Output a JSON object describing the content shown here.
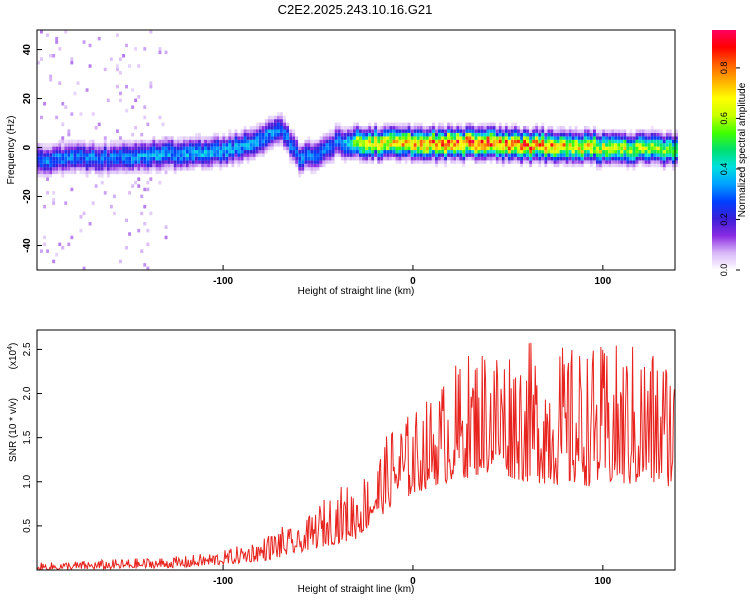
{
  "title": "C2E2.2025.243.10.16.G21",
  "chart_data": [
    {
      "type": "heatmap",
      "xlabel": "Height of straight line (km)",
      "ylabel": "Frequency (Hz)",
      "xlim": [
        -198,
        138
      ],
      "ylim": [
        -50,
        48
      ],
      "xticks": [
        -100,
        0,
        100
      ],
      "yticks": [
        -40,
        -20,
        0,
        20,
        40
      ],
      "colorbar": {
        "label": "Normalized spectral amplitude",
        "range": [
          0.0,
          0.95
        ],
        "ticks": [
          0.0,
          0.2,
          0.4,
          0.6,
          0.8
        ],
        "colors": [
          "#ffffff",
          "#d8b8f8",
          "#8a2be2",
          "#3a1fd8",
          "#0040ff",
          "#00a0ff",
          "#00e0e0",
          "#00e070",
          "#40ff00",
          "#c8ff00",
          "#ffff00",
          "#ffb000",
          "#ff6000",
          "#ff0000",
          "#ff0060"
        ]
      },
      "ridge": {
        "x": [
          -198,
          -180,
          -160,
          -140,
          -120,
          -100,
          -90,
          -80,
          -70,
          -65,
          -60,
          -50,
          -40,
          -35,
          -30,
          -20,
          -10,
          0,
          20,
          40,
          60,
          80,
          100,
          120,
          138
        ],
        "freq": [
          -6,
          -5,
          -5,
          -4,
          -3,
          -2,
          0,
          3,
          7,
          1,
          -5,
          -3,
          2,
          0,
          1,
          1,
          1,
          1,
          1,
          1,
          0,
          0,
          -1,
          -1,
          -2
        ],
        "amplitude": [
          0.3,
          0.3,
          0.3,
          0.35,
          0.35,
          0.35,
          0.35,
          0.35,
          0.3,
          0.3,
          0.3,
          0.3,
          0.3,
          0.4,
          0.6,
          0.7,
          0.7,
          0.75,
          0.8,
          0.8,
          0.8,
          0.7,
          0.65,
          0.6,
          0.55
        ]
      }
    },
    {
      "type": "line",
      "xlabel": "Height of straight line (km)",
      "ylabel": "SNR (10 * v/v)",
      "scale_label": "(x10",
      "scale_exp": "4",
      "scale_close": ")",
      "xlim": [
        -198,
        138
      ],
      "ylim": [
        0,
        2.72
      ],
      "xticks": [
        -100,
        0,
        100
      ],
      "yticks": [
        0.5,
        1.0,
        1.5,
        2.0,
        2.5
      ],
      "color": "#e8231e",
      "envelope": {
        "x": [
          -198,
          -160,
          -120,
          -100,
          -80,
          -70,
          -60,
          -50,
          -40,
          -30,
          -20,
          -10,
          0,
          10,
          20,
          30,
          40,
          60,
          80,
          100,
          120,
          138
        ],
        "base": [
          0.0,
          0.01,
          0.03,
          0.06,
          0.1,
          0.14,
          0.2,
          0.25,
          0.3,
          0.35,
          0.55,
          0.75,
          0.85,
          0.95,
          1.0,
          1.05,
          1.1,
          1.0,
          0.95,
          0.95,
          0.95,
          0.95
        ],
        "peak": [
          0.08,
          0.12,
          0.16,
          0.22,
          0.36,
          0.5,
          0.45,
          0.75,
          0.95,
          1.0,
          1.25,
          1.7,
          1.8,
          2.0,
          2.3,
          2.5,
          2.65,
          2.6,
          2.55,
          2.55,
          2.6,
          2.5
        ]
      }
    }
  ]
}
